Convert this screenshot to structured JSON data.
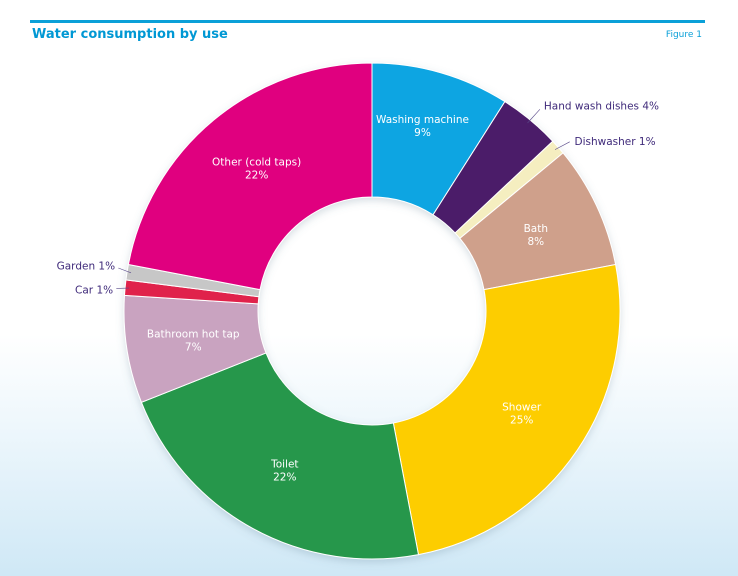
{
  "header": {
    "title": "Water consumption by use",
    "figure_label": "Figure 1"
  },
  "chart_data": {
    "type": "pie",
    "variant": "donut",
    "title": "Water consumption by use",
    "unit": "%",
    "legend": "none",
    "slices": [
      {
        "name": "Washing machine",
        "value": 9,
        "label": "9%",
        "color": "#07a5e2",
        "label_style": "inside"
      },
      {
        "name": "Hand wash dishes",
        "value": 4,
        "label": "4%",
        "color": "#4b1d69",
        "label_style": "outside"
      },
      {
        "name": "Dishwasher",
        "value": 1,
        "label": "1%",
        "color": "#f5eec0",
        "label_style": "outside"
      },
      {
        "name": "Bath",
        "value": 8,
        "label": "8%",
        "color": "#cfa08b",
        "label_style": "inside"
      },
      {
        "name": "Shower",
        "value": 25,
        "label": "25%",
        "color": "#fdcd00",
        "label_style": "inside"
      },
      {
        "name": "Toilet",
        "value": 22,
        "label": "22%",
        "color": "#25974b",
        "label_style": "inside"
      },
      {
        "name": "Bathroom hot tap",
        "value": 7,
        "label": "7%",
        "color": "#c9a3c0",
        "label_style": "inside"
      },
      {
        "name": "Car",
        "value": 1,
        "label": "1%",
        "color": "#e0234b",
        "label_style": "outside"
      },
      {
        "name": "Garden",
        "value": 1,
        "label": "1%",
        "color": "#c7c7c7",
        "label_style": "outside"
      },
      {
        "name": "Other (cold taps)",
        "value": 22,
        "label": "22%",
        "color": "#e0007f",
        "label_style": "inside"
      }
    ],
    "label_colors": {
      "inside": "#ffffff",
      "outside": "#3f2a7a"
    }
  }
}
